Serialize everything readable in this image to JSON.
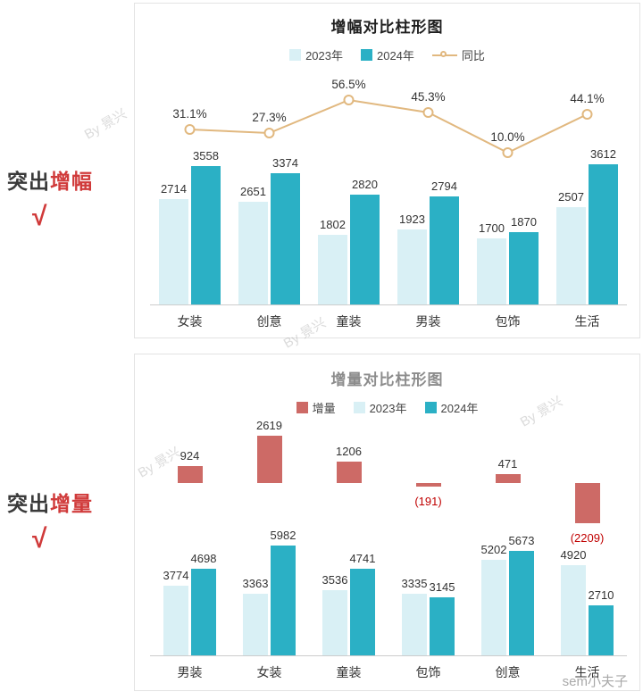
{
  "page": {
    "watermark": "By 景兴",
    "credit": "sem小夫子"
  },
  "annotations": {
    "growth_rate": {
      "prefix": "突出",
      "highlight": "增幅",
      "check": "√"
    },
    "increment": {
      "prefix": "突出",
      "highlight": "增量",
      "check": "√"
    }
  },
  "colors": {
    "bar_2023": "#d9f0f5",
    "bar_2024": "#2bb0c5",
    "yoy_line": "#e1b87f",
    "increment_bar": "#cd6a66",
    "negative_text": "#c00000",
    "highlight_text": "#d03a3a"
  },
  "chart_data": [
    {
      "type": "bar+line",
      "title": "增幅对比柱形图",
      "categories": [
        "女装",
        "创意",
        "童装",
        "男装",
        "包饰",
        "生活"
      ],
      "series": [
        {
          "name": "2023年",
          "kind": "bar",
          "color": "#d9f0f5",
          "values": [
            2714,
            2651,
            1802,
            1923,
            1700,
            2507
          ]
        },
        {
          "name": "2024年",
          "kind": "bar",
          "color": "#2bb0c5",
          "values": [
            3558,
            3374,
            2820,
            2794,
            1870,
            3612
          ]
        },
        {
          "name": "同比",
          "kind": "line",
          "color": "#e1b87f",
          "unit": "%",
          "values": [
            31.1,
            27.3,
            56.5,
            45.3,
            10.0,
            44.1
          ]
        }
      ],
      "legend_position": "top",
      "grid": false
    },
    {
      "type": "bar",
      "title": "增量对比柱形图",
      "categories": [
        "男装",
        "女装",
        "童装",
        "包饰",
        "创意",
        "生活"
      ],
      "series": [
        {
          "name": "增量",
          "kind": "bar",
          "color": "#cd6a66",
          "values": [
            924,
            2619,
            1206,
            -191,
            471,
            -2209
          ]
        },
        {
          "name": "2023年",
          "kind": "bar",
          "color": "#d9f0f5",
          "values": [
            3774,
            3363,
            3536,
            3335,
            5202,
            4920
          ]
        },
        {
          "name": "2024年",
          "kind": "bar",
          "color": "#2bb0c5",
          "values": [
            4698,
            5982,
            4741,
            3145,
            5673,
            2710
          ]
        }
      ],
      "legend_position": "top",
      "grid": false
    }
  ]
}
